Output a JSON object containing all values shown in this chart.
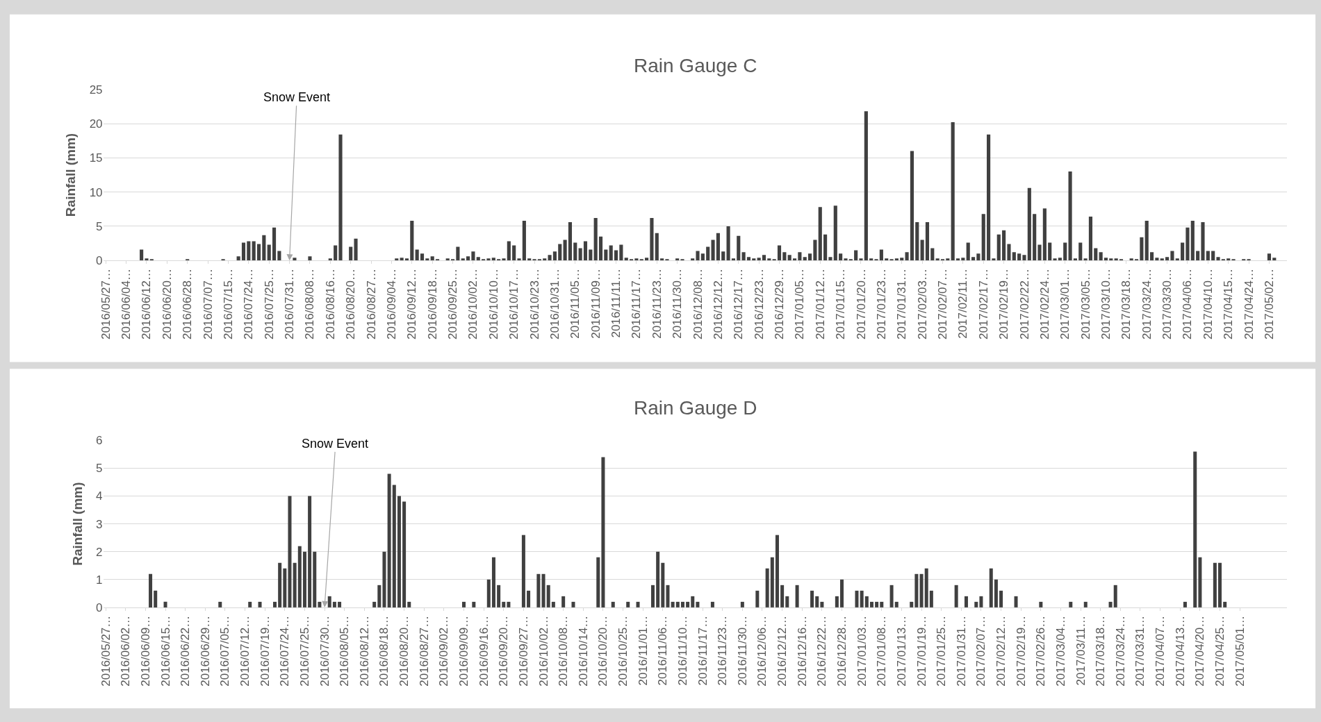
{
  "chart_data": [
    {
      "type": "bar",
      "title": "Rain Gauge C",
      "ylabel": "Rainfall (mm)",
      "color": "#404040",
      "ylim": [
        0,
        25
      ],
      "yticks": [
        0,
        5,
        10,
        15,
        20,
        25
      ],
      "grid": "y",
      "legend": false,
      "annotations": [
        {
          "text": "Snow Event",
          "x": "2016/07/31…",
          "y": 0
        }
      ],
      "categories": [
        "2016/05/27…",
        null,
        null,
        null,
        "2016/06/04…",
        null,
        null,
        null,
        "2016/06/12…",
        null,
        null,
        null,
        "2016/06/20…",
        null,
        null,
        null,
        "2016/06/28…",
        null,
        null,
        null,
        "2016/07/07…",
        null,
        null,
        null,
        "2016/07/15…",
        null,
        null,
        null,
        "2016/07/24…",
        null,
        null,
        null,
        "2016/07/25…",
        null,
        null,
        null,
        "2016/07/31…",
        null,
        null,
        null,
        "2016/08/08…",
        null,
        null,
        null,
        "2016/08/16…",
        null,
        null,
        null,
        "2016/08/20…",
        null,
        null,
        null,
        "2016/08/27…",
        null,
        null,
        null,
        "2016/09/04…",
        null,
        null,
        null,
        "2016/09/12…",
        null,
        null,
        null,
        "2016/09/18…",
        null,
        null,
        null,
        "2016/09/25…",
        null,
        null,
        null,
        "2016/10/02…",
        null,
        null,
        null,
        "2016/10/10…",
        null,
        null,
        null,
        "2016/10/17…",
        null,
        null,
        null,
        "2016/10/23…",
        null,
        null,
        null,
        "2016/10/31…",
        null,
        null,
        null,
        "2016/11/05…",
        null,
        null,
        null,
        "2016/11/09…",
        null,
        null,
        null,
        "2016/11/11…",
        null,
        null,
        null,
        "2016/11/17…",
        null,
        null,
        null,
        "2016/11/23…",
        null,
        null,
        null,
        "2016/11/30…",
        null,
        null,
        null,
        "2016/12/08…",
        null,
        null,
        null,
        "2016/12/12…",
        null,
        null,
        null,
        "2016/12/17…",
        null,
        null,
        null,
        "2016/12/23…",
        null,
        null,
        null,
        "2016/12/29…",
        null,
        null,
        null,
        "2017/01/05…",
        null,
        null,
        null,
        "2017/01/12…",
        null,
        null,
        null,
        "2017/01/15…",
        null,
        null,
        null,
        "2017/01/20…",
        null,
        null,
        null,
        "2017/01/23…",
        null,
        null,
        null,
        "2017/01/31…",
        null,
        null,
        null,
        "2017/02/03…",
        null,
        null,
        null,
        "2017/02/07…",
        null,
        null,
        null,
        "2017/02/11…",
        null,
        null,
        null,
        "2017/02/17…",
        null,
        null,
        null,
        "2017/02/19…",
        null,
        null,
        null,
        "2017/02/22…",
        null,
        null,
        null,
        "2017/02/24…",
        null,
        null,
        null,
        "2017/03/01…",
        null,
        null,
        null,
        "2017/03/05…",
        null,
        null,
        null,
        "2017/03/10…",
        null,
        null,
        null,
        "2017/03/18…",
        null,
        null,
        null,
        "2017/03/24…",
        null,
        null,
        null,
        "2017/03/30…",
        null,
        null,
        null,
        "2017/04/06…",
        null,
        null,
        null,
        "2017/04/10…",
        null,
        null,
        null,
        "2017/04/15…",
        null,
        null,
        null,
        "2017/04/24…",
        null,
        null,
        null,
        "2017/05/02…",
        null,
        null,
        null
      ],
      "values": [
        0,
        0,
        0,
        0,
        0,
        0,
        0,
        1.6,
        0.3,
        0.2,
        0,
        0,
        0,
        0,
        0,
        0,
        0.2,
        0,
        0,
        0,
        0,
        0,
        0,
        0.2,
        0,
        0,
        0.6,
        2.6,
        2.8,
        2.8,
        2.4,
        3.7,
        2.3,
        4.8,
        1.4,
        0,
        0,
        0.4,
        0,
        0,
        0.6,
        0,
        0,
        0,
        0.3,
        2.2,
        18.4,
        0,
        2.0,
        3.2,
        0,
        0,
        0,
        0,
        0,
        0,
        0,
        0.3,
        0.4,
        0.3,
        5.8,
        1.6,
        1.0,
        0.3,
        0.6,
        0.2,
        0,
        0.3,
        0.2,
        2.0,
        0.3,
        0.6,
        1.3,
        0.5,
        0.2,
        0.3,
        0.4,
        0.2,
        0.3,
        2.8,
        2.2,
        0.3,
        5.8,
        0.3,
        0.2,
        0.2,
        0.3,
        0.8,
        1.3,
        2.4,
        3.0,
        5.6,
        2.6,
        1.8,
        2.8,
        1.6,
        6.2,
        3.5,
        1.6,
        2.2,
        1.5,
        2.3,
        0.4,
        0.2,
        0.3,
        0.2,
        0.4,
        6.2,
        4.0,
        0.3,
        0.2,
        0,
        0.3,
        0.2,
        0,
        0.3,
        1.4,
        1.0,
        2.0,
        3.0,
        4.0,
        1.3,
        5.0,
        0.3,
        3.6,
        1.2,
        0.5,
        0.3,
        0.4,
        0.8,
        0.3,
        0.2,
        2.2,
        1.2,
        0.8,
        0.3,
        1.2,
        0.5,
        1.0,
        3.0,
        7.8,
        3.8,
        0.5,
        8.0,
        1.0,
        0.3,
        0.2,
        1.5,
        0.3,
        21.8,
        0.3,
        0.2,
        1.6,
        0.3,
        0.2,
        0.3,
        0.4,
        1.2,
        16.0,
        5.6,
        3.0,
        5.6,
        1.8,
        0.3,
        0.2,
        0.3,
        20.2,
        0.3,
        0.4,
        2.6,
        0.5,
        1.0,
        6.8,
        18.4,
        0.3,
        3.8,
        4.4,
        2.4,
        1.2,
        1.0,
        0.8,
        10.6,
        6.8,
        2.3,
        7.6,
        2.6,
        0.3,
        0.4,
        2.6,
        13.0,
        0.3,
        2.6,
        0.3,
        6.4,
        1.8,
        1.2,
        0.4,
        0.3,
        0.3,
        0.2,
        0,
        0.3,
        0.2,
        3.4,
        5.8,
        1.2,
        0.4,
        0.3,
        0.5,
        1.4,
        0.3,
        2.6,
        4.8,
        5.8,
        1.4,
        5.6,
        1.4,
        1.4,
        0.5,
        0.2,
        0.3,
        0.2,
        0,
        0.2,
        0.2,
        0,
        0,
        0,
        1.0,
        0.4,
        0,
        0
      ]
    },
    {
      "type": "bar",
      "title": "Rain Gauge D",
      "ylabel": "Rainfall (mm)",
      "color": "#404040",
      "ylim": [
        0,
        6
      ],
      "yticks": [
        0,
        1,
        2,
        3,
        4,
        5,
        6
      ],
      "grid": "y",
      "legend": false,
      "annotations": [
        {
          "text": "Snow Event",
          "x": "2016/07/30…",
          "y": 0
        }
      ],
      "categories": [
        "2016/05/27…",
        null,
        null,
        null,
        "2016/06/02…",
        null,
        null,
        null,
        "2016/06/09…",
        null,
        null,
        null,
        "2016/06/15…",
        null,
        null,
        null,
        "2016/06/22…",
        null,
        null,
        null,
        "2016/06/29…",
        null,
        null,
        null,
        "2016/07/05…",
        null,
        null,
        null,
        "2016/07/12…",
        null,
        null,
        null,
        "2016/07/19…",
        null,
        null,
        null,
        "2016/07/24…",
        null,
        null,
        null,
        "2016/07/25…",
        null,
        null,
        null,
        "2016/07/30…",
        null,
        null,
        null,
        "2016/08/05…",
        null,
        null,
        null,
        "2016/08/12…",
        null,
        null,
        null,
        "2016/08/18…",
        null,
        null,
        null,
        "2016/08/20…",
        null,
        null,
        null,
        "2016/08/27…",
        null,
        null,
        null,
        "2016/09/02…",
        null,
        null,
        null,
        "2016/09/09…",
        null,
        null,
        null,
        "2016/09/16…",
        null,
        null,
        null,
        "2016/09/20…",
        null,
        null,
        null,
        "2016/09/27…",
        null,
        null,
        null,
        "2016/10/02…",
        null,
        null,
        null,
        "2016/10/08…",
        null,
        null,
        null,
        "2016/10/14…",
        null,
        null,
        null,
        "2016/10/20…",
        null,
        null,
        null,
        "2016/10/25…",
        null,
        null,
        null,
        "2016/11/01…",
        null,
        null,
        null,
        "2016/11/06…",
        null,
        null,
        null,
        "2016/11/10…",
        null,
        null,
        null,
        "2016/11/17…",
        null,
        null,
        null,
        "2016/11/23…",
        null,
        null,
        null,
        "2016/11/30…",
        null,
        null,
        null,
        "2016/12/06…",
        null,
        null,
        null,
        "2016/12/12…",
        null,
        null,
        null,
        "2016/12/16…",
        null,
        null,
        null,
        "2016/12/22…",
        null,
        null,
        null,
        "2016/12/28…",
        null,
        null,
        null,
        "2017/01/03…",
        null,
        null,
        null,
        "2017/01/08…",
        null,
        null,
        null,
        "2017/01/13…",
        null,
        null,
        null,
        "2017/01/19…",
        null,
        null,
        null,
        "2017/01/25…",
        null,
        null,
        null,
        "2017/01/31…",
        null,
        null,
        null,
        "2017/02/07…",
        null,
        null,
        null,
        "2017/02/12…",
        null,
        null,
        null,
        "2017/02/19…",
        null,
        null,
        null,
        "2017/02/26…",
        null,
        null,
        null,
        "2017/03/04…",
        null,
        null,
        null,
        "2017/03/11…",
        null,
        null,
        null,
        "2017/03/18…",
        null,
        null,
        null,
        "2017/03/24…",
        null,
        null,
        null,
        "2017/03/31…",
        null,
        null,
        null,
        "2017/04/07…",
        null,
        null,
        null,
        "2017/04/13…",
        null,
        null,
        null,
        "2017/04/20…",
        null,
        null,
        null,
        "2017/04/25…",
        null,
        null,
        null,
        "2017/05/01…",
        null,
        null,
        null,
        null,
        null,
        null,
        null,
        null,
        null
      ],
      "values": [
        0,
        0,
        0,
        0,
        0,
        0,
        0,
        0,
        0,
        1.2,
        0.6,
        0,
        0.2,
        0,
        0,
        0,
        0,
        0,
        0,
        0,
        0,
        0,
        0,
        0.2,
        0,
        0,
        0,
        0,
        0,
        0.2,
        0,
        0.2,
        0,
        0,
        0.2,
        1.6,
        1.4,
        4.0,
        1.6,
        2.2,
        2.0,
        4.0,
        2.0,
        0.2,
        0,
        0.4,
        0.2,
        0.2,
        0,
        0,
        0,
        0,
        0,
        0,
        0.2,
        0.8,
        2.0,
        4.8,
        4.4,
        4.0,
        3.8,
        0.2,
        0,
        0,
        0,
        0,
        0,
        0,
        0,
        0,
        0,
        0,
        0.2,
        0,
        0.2,
        0,
        0,
        1.0,
        1.8,
        0.8,
        0.2,
        0.2,
        0,
        0,
        2.6,
        0.6,
        0,
        1.2,
        1.2,
        0.8,
        0.2,
        0,
        0.4,
        0,
        0.2,
        0,
        0,
        0,
        0,
        1.8,
        5.4,
        0,
        0.2,
        0,
        0,
        0.2,
        0,
        0.2,
        0,
        0,
        0.8,
        2.0,
        1.6,
        0.8,
        0.2,
        0.2,
        0.2,
        0.2,
        0.4,
        0.2,
        0,
        0,
        0.2,
        0,
        0,
        0,
        0,
        0,
        0.2,
        0,
        0,
        0.6,
        0,
        1.4,
        1.8,
        2.6,
        0.8,
        0.4,
        0,
        0.8,
        0,
        0,
        0.6,
        0.4,
        0.2,
        0,
        0,
        0.4,
        1.0,
        0,
        0,
        0.6,
        0.6,
        0.4,
        0.2,
        0.2,
        0.2,
        0,
        0.8,
        0.2,
        0,
        0,
        0.2,
        1.2,
        1.2,
        1.4,
        0.6,
        0,
        0,
        0,
        0,
        0.8,
        0,
        0.4,
        0,
        0.2,
        0.4,
        0,
        1.4,
        1.0,
        0.6,
        0,
        0,
        0.4,
        0,
        0,
        0,
        0,
        0.2,
        0,
        0,
        0,
        0,
        0,
        0.2,
        0,
        0,
        0.2,
        0,
        0,
        0,
        0,
        0.2,
        0.8,
        0,
        0,
        0,
        0,
        0,
        0,
        0,
        0,
        0,
        0,
        0,
        0,
        0,
        0.2,
        0,
        5.6,
        1.8,
        0,
        0,
        1.6,
        1.6,
        0.2,
        0,
        0,
        0,
        0,
        0,
        0,
        0,
        0,
        0,
        0,
        0,
        0
      ]
    }
  ]
}
